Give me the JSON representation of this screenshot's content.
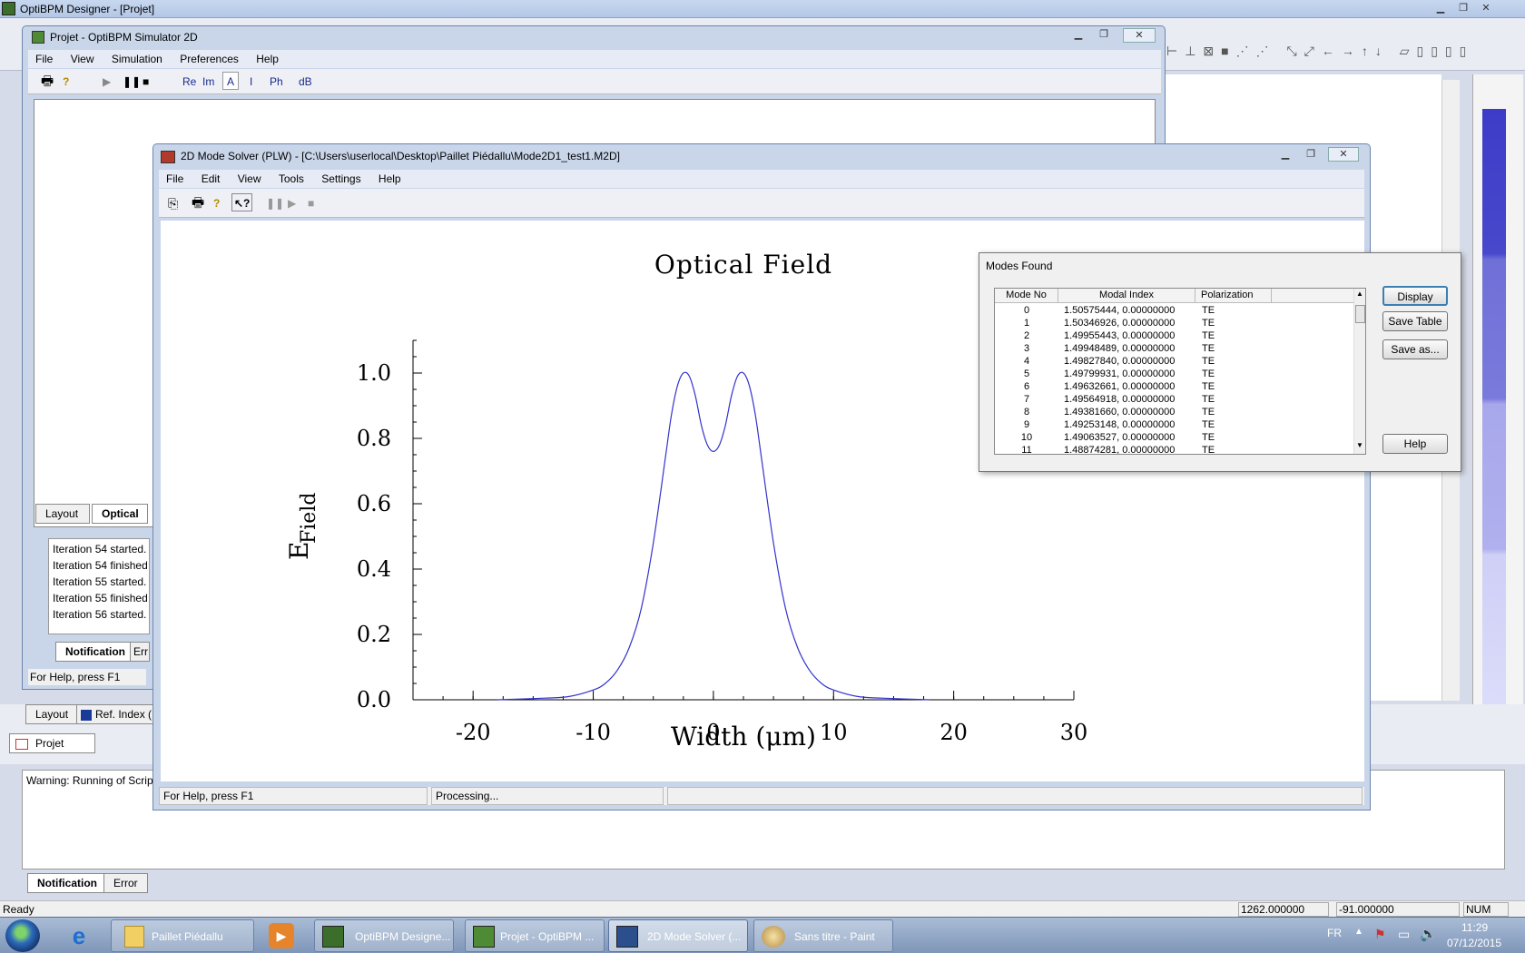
{
  "designer": {
    "title": "OptiBPM Designer  - [Projet]",
    "status_ready": "Ready",
    "coord_x": "1262.000000",
    "coord_y": "-91.000000",
    "num": "NUM",
    "warning": "Warning: Running of Scrip",
    "bottom_tabs": [
      "Notification",
      "Error"
    ],
    "doc_tab": "Projet",
    "layout_tab": "Layout",
    "refindex_tab": "Ref. Index ("
  },
  "simulator": {
    "title": "Projet - OptiBPM Simulator 2D",
    "menu": [
      "File",
      "View",
      "Simulation",
      "Preferences",
      "Help"
    ],
    "toolbar": [
      "Re",
      "Im",
      "A",
      "I",
      "Ph",
      "dB"
    ],
    "tabs": [
      "Layout",
      "Optical F"
    ],
    "log": [
      "Iteration 54 started.",
      "Iteration 54 finished",
      "Iteration 55 started.",
      "Iteration 55 finished",
      "Iteration 56 started."
    ],
    "log_tabs": [
      "Notification",
      "Err"
    ],
    "status": "For Help, press F1"
  },
  "modesolver": {
    "title": "2D Mode Solver (PLW)  - [C:\\Users\\userlocal\\Desktop\\Paillet Piédallu\\Mode2D1_test1.M2D]",
    "menu": [
      "File",
      "Edit",
      "View",
      "Tools",
      "Settings",
      "Help"
    ],
    "status_left": "For Help, press F1",
    "status_mid": "Processing..."
  },
  "chart_data": {
    "type": "line",
    "title": "Optical Field",
    "xlabel": "Width (μm)",
    "ylabel": "E",
    "ylabel_sub": "Field",
    "xlim": [
      -25,
      30
    ],
    "ylim": [
      0,
      1.1
    ],
    "xticks": [
      -20,
      -10,
      0,
      10,
      20,
      30
    ],
    "yticks": [
      0.0,
      0.2,
      0.4,
      0.6,
      0.8,
      1.0
    ],
    "grid": false,
    "series": [
      {
        "color": "#3333cc",
        "x": [
          -18,
          -14,
          -12,
          -10,
          -9,
          -8,
          -7,
          -6,
          -5,
          -4,
          -3.5,
          -3,
          -2.5,
          -2,
          -1.5,
          -1,
          -0.5,
          0,
          0.5,
          1,
          1.5,
          2,
          2.5,
          3,
          3.5,
          4,
          5,
          6,
          7,
          8,
          9,
          10,
          12,
          14,
          18
        ],
        "y": [
          0.0,
          0.005,
          0.01,
          0.03,
          0.05,
          0.09,
          0.16,
          0.28,
          0.48,
          0.74,
          0.87,
          0.96,
          1.0,
          0.99,
          0.93,
          0.84,
          0.78,
          0.76,
          0.78,
          0.84,
          0.93,
          0.99,
          1.0,
          0.96,
          0.87,
          0.74,
          0.48,
          0.28,
          0.16,
          0.09,
          0.05,
          0.03,
          0.01,
          0.005,
          0.0
        ]
      }
    ]
  },
  "modes": {
    "title": "Modes Found",
    "columns": [
      "Mode No",
      "Modal Index",
      "Polarization"
    ],
    "rows": [
      [
        "0",
        "1.50575444, 0.00000000",
        "TE"
      ],
      [
        "1",
        "1.50346926, 0.00000000",
        "TE"
      ],
      [
        "2",
        "1.49955443, 0.00000000",
        "TE"
      ],
      [
        "3",
        "1.49948489, 0.00000000",
        "TE"
      ],
      [
        "4",
        "1.49827840, 0.00000000",
        "TE"
      ],
      [
        "5",
        "1.49799931, 0.00000000",
        "TE"
      ],
      [
        "6",
        "1.49632661, 0.00000000",
        "TE"
      ],
      [
        "7",
        "1.49564918, 0.00000000",
        "TE"
      ],
      [
        "8",
        "1.49381660, 0.00000000",
        "TE"
      ],
      [
        "9",
        "1.49253148, 0.00000000",
        "TE"
      ],
      [
        "10",
        "1.49063527, 0.00000000",
        "TE"
      ],
      [
        "11",
        "1.48874281, 0.00000000",
        "TE"
      ]
    ],
    "buttons": {
      "display": "Display",
      "save_table": "Save Table",
      "save_as": "Save as...",
      "help": "Help"
    }
  },
  "taskbar": {
    "items": [
      "Paillet Piédallu",
      "OptiBPM Designe...",
      "Projet - OptiBPM ...",
      "2D Mode Solver (...",
      "Sans titre - Paint"
    ],
    "lang": "FR",
    "time": "11:29",
    "date": "07/12/2015"
  }
}
